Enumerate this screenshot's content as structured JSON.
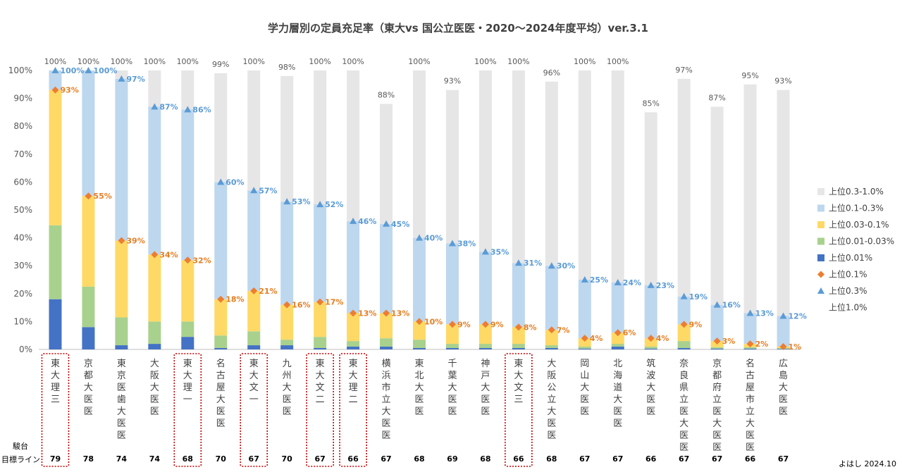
{
  "chart_data": {
    "type": "bar",
    "title": "学力層別の定員充足率（東大vs 国公立医医・2020〜2024年度平均）ver.3.1",
    "ylim": [
      0,
      100
    ],
    "yticks": [
      "0%",
      "10%",
      "20%",
      "30%",
      "40%",
      "50%",
      "60%",
      "70%",
      "80%",
      "90%",
      "100%"
    ],
    "categories": [
      "東大理三",
      "京都大医医",
      "東京医歯大医医",
      "大阪大医医",
      "東大理一",
      "名古屋大医医",
      "東大文一",
      "九州大医医",
      "東大文二",
      "東大理二",
      "横浜市立大医医",
      "東北大医医",
      "千葉大医医",
      "神戸大医医",
      "東大文三",
      "大阪公立大医医",
      "岡山大医医",
      "北海道大医医",
      "筑波大医医",
      "奈良県立医大医医",
      "京都府立医大医医",
      "名古屋市立大医医",
      "広島大医医"
    ],
    "highlighted": [
      0,
      4,
      6,
      8,
      9,
      14
    ],
    "series": [
      {
        "name": "上位0.01%",
        "color": "#4472c4",
        "values": [
          18,
          8,
          1.5,
          2,
          4.5,
          0.5,
          1.5,
          1.5,
          0.5,
          1,
          1,
          0.5,
          0.5,
          0.5,
          0.5,
          0.5,
          0.3,
          1,
          0.3,
          0.5,
          0.3,
          0.3,
          0.2
        ]
      },
      {
        "name": "上位0.01-0.03%",
        "color": "#a9d18e",
        "values": [
          26.5,
          14.5,
          10,
          8,
          5.5,
          4.5,
          5,
          2,
          4,
          2,
          3,
          3,
          1.5,
          1.5,
          1.5,
          1,
          0.7,
          1,
          0.7,
          2.5,
          0.5,
          0.5,
          0.3
        ]
      },
      {
        "name": "上位0.03-0.1%",
        "color": "#ffd966",
        "values": [
          48.5,
          32.5,
          27.5,
          24,
          22,
          13,
          14.5,
          12.5,
          12.5,
          10,
          9,
          6.5,
          7,
          7,
          6,
          5.5,
          3,
          4,
          3,
          6,
          2.2,
          1.2,
          0.5
        ]
      },
      {
        "name": "上位0.1-0.3%",
        "color": "#bdd7ee",
        "values": [
          7,
          45,
          58,
          53,
          54,
          42,
          36,
          37,
          35,
          33,
          32,
          30,
          29,
          26,
          23,
          23,
          21,
          18,
          19,
          10,
          13,
          11,
          11
        ]
      },
      {
        "name": "上位0.3-1.0%",
        "color": "#e7e6e6",
        "values": [
          0,
          0,
          3,
          13,
          14,
          39,
          43,
          45,
          48,
          54,
          43,
          60,
          55,
          65,
          69,
          66,
          75,
          76,
          62,
          78,
          71,
          82,
          81
        ]
      }
    ],
    "markers": [
      {
        "name": "上位0.1%",
        "color": "#ed7d31",
        "shape": "diamond",
        "values": [
          93,
          55,
          39,
          34,
          32,
          18,
          21,
          16,
          17,
          13,
          13,
          10,
          9,
          9,
          8,
          7,
          4,
          6,
          4,
          9,
          3,
          2,
          1
        ],
        "labels": [
          "93%",
          "55%",
          "39%",
          "34%",
          "32%",
          "18%",
          "21%",
          "16%",
          "17%",
          "13%",
          "13%",
          "10%",
          "9%",
          "9%",
          "8%",
          "7%",
          "4%",
          "6%",
          "4%",
          "9%",
          "3%",
          "2%",
          "1%"
        ]
      },
      {
        "name": "上位0.3%",
        "color": "#5b9bd5",
        "shape": "triangle",
        "values": [
          100,
          100,
          97,
          87,
          86,
          60,
          57,
          53,
          52,
          46,
          45,
          40,
          38,
          35,
          31,
          30,
          25,
          24,
          23,
          19,
          16,
          13,
          12
        ],
        "labels": [
          "100%",
          "100%",
          "97%",
          "87%",
          "86%",
          "60%",
          "57%",
          "53%",
          "52%",
          "46%",
          "45%",
          "40%",
          "38%",
          "35%",
          "31%",
          "30%",
          "25%",
          "24%",
          "23%",
          "19%",
          "16%",
          "13%",
          "12%"
        ]
      }
    ],
    "line_series": {
      "name": "上位1.0%",
      "values": [
        100,
        100,
        100,
        100,
        100,
        99,
        100,
        98,
        100,
        100,
        88,
        100,
        93,
        100,
        100,
        96,
        100,
        100,
        85,
        97,
        87,
        95,
        93
      ],
      "labels": [
        "100%",
        "100%",
        "100%",
        "100%",
        "100%",
        "99%",
        "100%",
        "98%",
        "100%",
        "100%",
        "88%",
        "100%",
        "93%",
        "100%",
        "100%",
        "96%",
        "100%",
        "100%",
        "85%",
        "97%",
        "87%",
        "95%",
        "93%"
      ]
    },
    "legend": {
      "placement": "right",
      "entries": [
        "上位0.3-1.0%",
        "上位0.1-0.3%",
        "上位0.03-0.1%",
        "上位0.01-0.03%",
        "上位0.01%",
        "上位0.1%",
        "上位0.3%",
        "上位1.0%"
      ]
    },
    "row_labels": {
      "top": "駿台",
      "bottom": "目標ライン"
    },
    "targets": [
      "79",
      "78",
      "74",
      "74",
      "68",
      "70",
      "67",
      "70",
      "67",
      "66",
      "67",
      "68",
      "69",
      "68",
      "66",
      "68",
      "67",
      "67",
      "66",
      "67",
      "67",
      "66",
      "67"
    ],
    "footer": "よはし 2024.10"
  }
}
